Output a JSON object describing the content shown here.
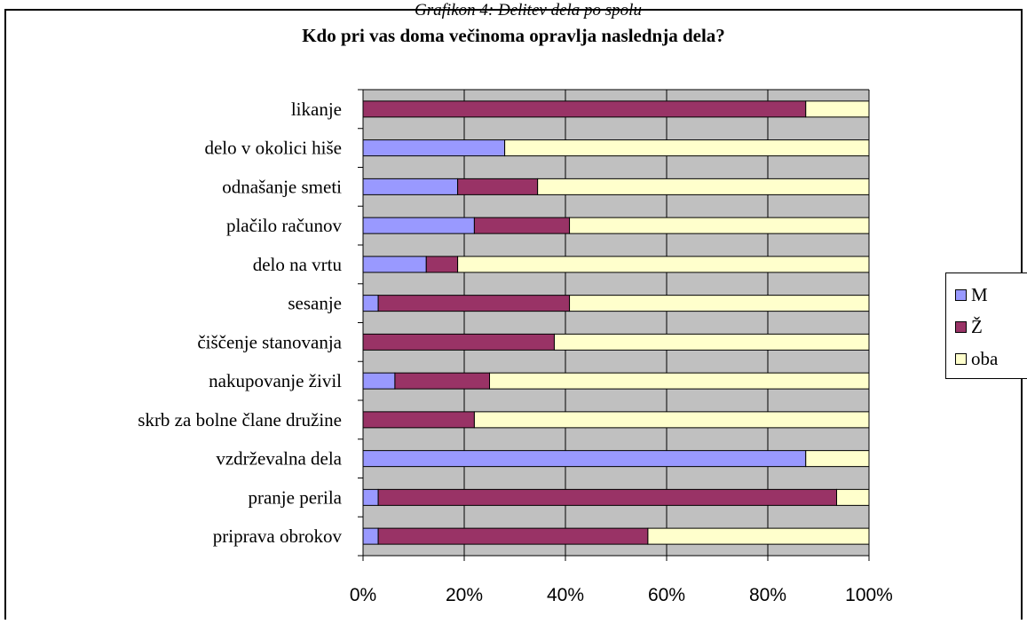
{
  "caption_cut": "Grafikon 4: Delitev dela po spolu",
  "chart_data": {
    "type": "bar",
    "orientation": "horizontal",
    "stacked": "percent",
    "title": "Kdo pri vas doma večinoma opravlja naslednja dela?",
    "categories": [
      "likanje",
      "delo v okolici hiše",
      "odnašanje smeti",
      "plačilo računov",
      "delo na vrtu",
      "sesanje",
      "čiščenje stanovanja",
      "nakupovanje živil",
      "skrb za bolne člane družine",
      "vzdrževalna dela",
      "pranje perila",
      "priprava obrokov"
    ],
    "series": [
      {
        "name": "M",
        "color": "#9999ff",
        "values": [
          0,
          28,
          18.7,
          22,
          12.5,
          3,
          0,
          6.3,
          0,
          87.5,
          3,
          3
        ]
      },
      {
        "name": "Ž",
        "color": "#993366",
        "values": [
          87.5,
          0,
          15.8,
          18.8,
          6.2,
          37.8,
          37.8,
          18.7,
          22,
          0,
          90.6,
          53.3
        ]
      },
      {
        "name": "oba",
        "color": "#ffffcc",
        "values": [
          12.5,
          72,
          65.5,
          59.2,
          81.3,
          59.2,
          62.2,
          75,
          78,
          12.5,
          6.4,
          43.7
        ]
      }
    ],
    "xlim": [
      0,
      100
    ],
    "xticks": [
      "0%",
      "20%",
      "40%",
      "60%",
      "80%",
      "100%"
    ],
    "grid": true,
    "plot_background": "#c0c0c0",
    "legend_position": "right"
  }
}
